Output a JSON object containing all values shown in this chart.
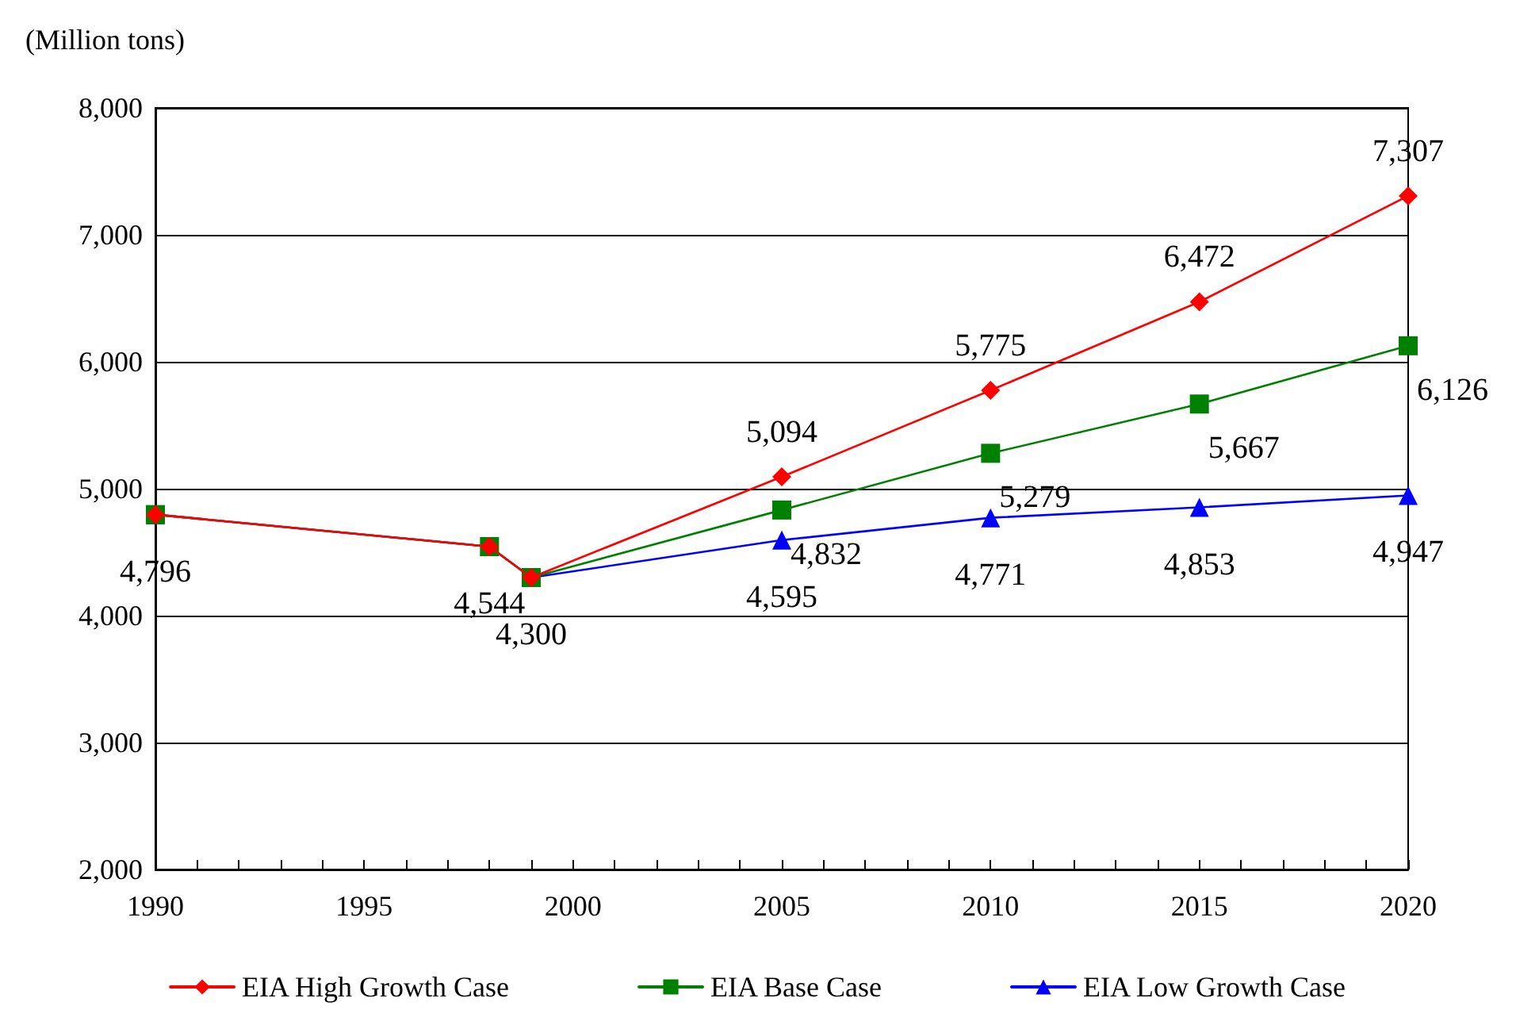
{
  "chart_data": {
    "type": "line",
    "ylabel": "(Million tons)",
    "x": [
      1990,
      1998,
      1999,
      2005,
      2010,
      2015,
      2020
    ],
    "series": [
      {
        "name": "EIA High Growth Case",
        "color": "#ff0000",
        "marker": "diamond",
        "values": [
          4796,
          4544,
          4300,
          5094,
          5775,
          6472,
          7307
        ],
        "value_labels": [
          null,
          null,
          null,
          "5,094",
          "5,775",
          "6,472",
          "7,307"
        ]
      },
      {
        "name": "EIA Base Case",
        "color": "#008000",
        "marker": "square",
        "values": [
          4796,
          4544,
          4300,
          4832,
          5279,
          5667,
          6126
        ],
        "value_labels": [
          null,
          null,
          null,
          "4,832",
          "5,279",
          "5,667",
          "6,126"
        ]
      },
      {
        "name": "EIA Low Growth Case",
        "color": "#0000ff",
        "marker": "triangle",
        "values": [
          4796,
          4544,
          4300,
          4595,
          4771,
          4853,
          4947
        ],
        "value_labels": [
          "4,796",
          "4,544",
          "4,300",
          "4,595",
          "4,771",
          "4,853",
          "4,947"
        ]
      }
    ],
    "xlim": [
      1990,
      2020
    ],
    "xticks": [
      1990,
      {
        "value": 1991,
        "label": null
      },
      {
        "value": 1992,
        "label": null
      },
      {
        "value": 1993,
        "label": null
      },
      {
        "value": 1994,
        "label": null
      },
      1995,
      {
        "value": 1996,
        "label": null
      },
      {
        "value": 1997,
        "label": null
      },
      {
        "value": 1998,
        "label": null
      },
      {
        "value": 1999,
        "label": null
      },
      2000,
      {
        "value": 2001,
        "label": null
      },
      {
        "value": 2002,
        "label": null
      },
      {
        "value": 2003,
        "label": null
      },
      {
        "value": 2004,
        "label": null
      },
      2005,
      {
        "value": 2006,
        "label": null
      },
      {
        "value": 2007,
        "label": null
      },
      {
        "value": 2008,
        "label": null
      },
      {
        "value": 2009,
        "label": null
      },
      2010,
      {
        "value": 2011,
        "label": null
      },
      {
        "value": 2012,
        "label": null
      },
      {
        "value": 2013,
        "label": null
      },
      {
        "value": 2014,
        "label": null
      },
      2015,
      {
        "value": 2016,
        "label": null
      },
      {
        "value": 2017,
        "label": null
      },
      {
        "value": 2018,
        "label": null
      },
      {
        "value": 2019,
        "label": null
      },
      2020
    ],
    "ylim": [
      2000,
      8000
    ],
    "yticks": [
      {
        "value": 2000,
        "label": "2,000"
      },
      {
        "value": 3000,
        "label": "3,000"
      },
      {
        "value": 4000,
        "label": "4,000"
      },
      {
        "value": 5000,
        "label": "5,000"
      },
      {
        "value": 6000,
        "label": "6,000"
      },
      {
        "value": 7000,
        "label": "7,000"
      },
      {
        "value": 8000,
        "label": "8,000"
      }
    ],
    "grid": "y",
    "legend": "bottom",
    "line_style": "solid"
  }
}
